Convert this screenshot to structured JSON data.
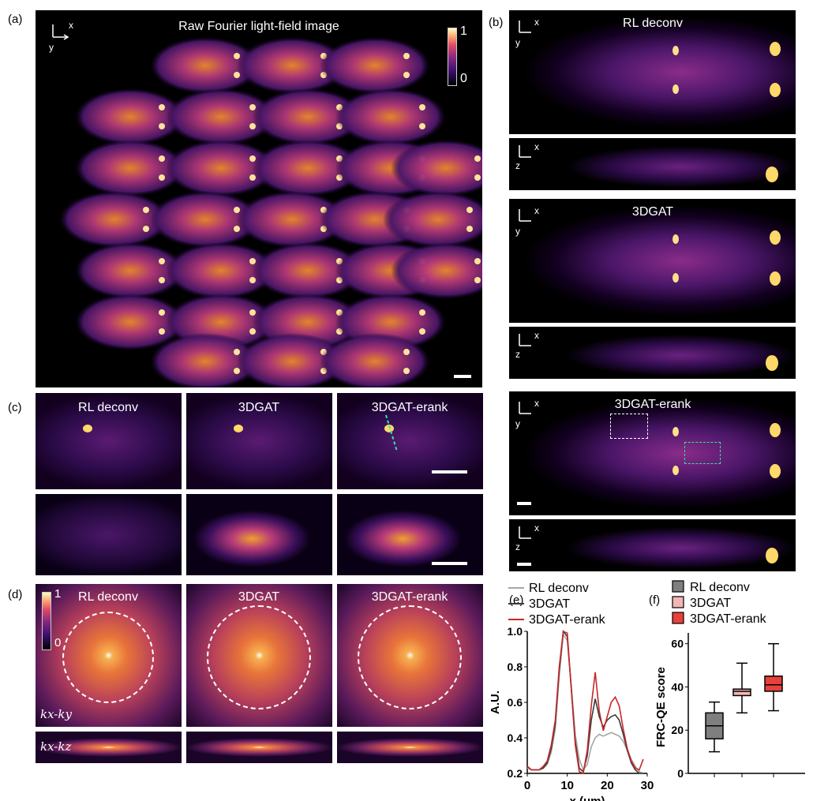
{
  "panel_labels": {
    "a": "(a)",
    "b": "(b)",
    "c": "(c)",
    "d": "(d)",
    "e": "(e)",
    "f": "(f)"
  },
  "panel_a": {
    "title": "Raw Fourier light-field image",
    "axis_x": "x",
    "axis_y": "y",
    "colorbar_max": "1",
    "colorbar_min": "0"
  },
  "panel_b": {
    "views": [
      {
        "title": "RL deconv",
        "xy_axes": [
          "x",
          "y"
        ],
        "xz_axes": [
          "x",
          "z"
        ]
      },
      {
        "title": "3DGAT",
        "xy_axes": [
          "x",
          "y"
        ],
        "xz_axes": [
          "x",
          "z"
        ]
      },
      {
        "title": "3DGAT-erank",
        "xy_axes": [
          "x",
          "y"
        ],
        "xz_axes": [
          "x",
          "z"
        ]
      }
    ]
  },
  "panel_c": {
    "titles": [
      "RL deconv",
      "3DGAT",
      "3DGAT-erank"
    ]
  },
  "panel_d": {
    "titles": [
      "RL deconv",
      "3DGAT",
      "3DGAT-erank"
    ],
    "row_labels": [
      "kx-ky",
      "kx-kz"
    ],
    "colorbar_max": "1",
    "colorbar_min": "0"
  },
  "colors": {
    "accent_dashed": "#2ee6a0",
    "box_white": "#ffffff",
    "rl": "#a6a6a6",
    "gat": "#3a3a3a",
    "erank": "#c8282a",
    "box_rl": "#7f7f7f",
    "box_gat": "#f2b6b6",
    "box_erank": "#e8403b"
  },
  "chart_data": [
    {
      "type": "line",
      "panel": "(e)",
      "xlabel": "x (μm)",
      "ylabel": "A.U.",
      "xlim": [
        0,
        30
      ],
      "ylim": [
        0.2,
        1.0
      ],
      "xticks": [
        "0",
        "10",
        "20",
        "30"
      ],
      "yticks": [
        "0.2",
        "0.4",
        "0.6",
        "0.8",
        "1.0"
      ],
      "legend_position": "top",
      "series": [
        {
          "name": "RL deconv",
          "x": [
            0,
            1,
            2,
            3,
            4,
            5,
            6,
            7,
            8,
            9,
            10,
            11,
            12,
            13,
            14,
            15,
            16,
            17,
            18,
            19,
            20,
            21,
            22,
            23,
            24,
            25,
            26,
            27,
            28,
            29
          ],
          "y": [
            0.23,
            0.22,
            0.22,
            0.22,
            0.23,
            0.25,
            0.32,
            0.45,
            0.75,
            0.98,
            0.95,
            0.7,
            0.42,
            0.28,
            0.22,
            0.25,
            0.35,
            0.4,
            0.42,
            0.41,
            0.42,
            0.43,
            0.42,
            0.41,
            0.38,
            0.33,
            0.28,
            0.24,
            0.21,
            0.2
          ]
        },
        {
          "name": "3DGAT",
          "x": [
            0,
            1,
            2,
            3,
            4,
            5,
            6,
            7,
            8,
            9,
            10,
            11,
            12,
            13,
            14,
            15,
            16,
            17,
            18,
            19,
            20,
            21,
            22,
            23,
            24,
            25,
            26,
            27,
            28,
            29
          ],
          "y": [
            0.24,
            0.22,
            0.22,
            0.22,
            0.23,
            0.26,
            0.34,
            0.48,
            0.78,
            1.0,
            0.97,
            0.68,
            0.38,
            0.23,
            0.21,
            0.3,
            0.5,
            0.62,
            0.52,
            0.46,
            0.5,
            0.52,
            0.53,
            0.5,
            0.42,
            0.33,
            0.26,
            0.22,
            0.2,
            0.2
          ]
        },
        {
          "name": "3DGAT-erank",
          "x": [
            0,
            1,
            2,
            3,
            4,
            5,
            6,
            7,
            8,
            9,
            10,
            11,
            12,
            13,
            14,
            15,
            16,
            17,
            18,
            19,
            20,
            21,
            22,
            23,
            24,
            25,
            26,
            27,
            28,
            29
          ],
          "y": [
            0.24,
            0.22,
            0.22,
            0.22,
            0.24,
            0.27,
            0.36,
            0.5,
            0.8,
            1.0,
            0.99,
            0.68,
            0.36,
            0.21,
            0.2,
            0.33,
            0.58,
            0.77,
            0.55,
            0.44,
            0.52,
            0.6,
            0.63,
            0.58,
            0.45,
            0.34,
            0.27,
            0.23,
            0.22,
            0.28
          ]
        }
      ]
    },
    {
      "type": "box",
      "panel": "(f)",
      "ylabel": "FRC-QE  score",
      "ylim": [
        0,
        65
      ],
      "yticks": [
        "0",
        "20",
        "40",
        "60"
      ],
      "legend_position": "top",
      "series": [
        {
          "name": "RL deconv",
          "min": 10,
          "q1": 16,
          "median": 22,
          "q3": 28,
          "max": 33
        },
        {
          "name": "3DGAT",
          "min": 28,
          "q1": 36,
          "median": 38,
          "q3": 39,
          "max": 51
        },
        {
          "name": "3DGAT-erank",
          "min": 29,
          "q1": 38,
          "median": 41,
          "q3": 45,
          "max": 60
        }
      ]
    }
  ]
}
